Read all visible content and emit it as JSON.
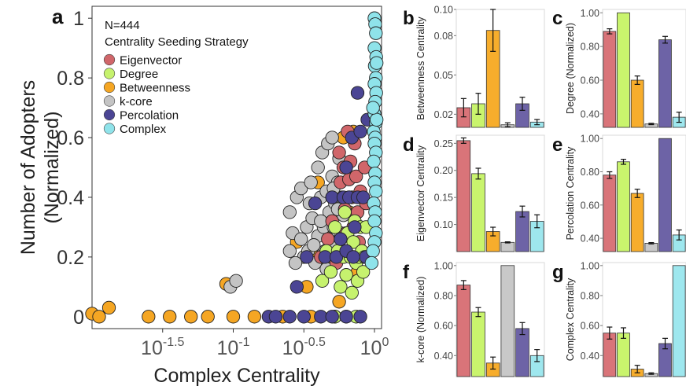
{
  "colors": {
    "Eigenvector": "#d0666a",
    "Degree": "#c6f26e",
    "Betweenness": "#f5a623",
    "k-core": "#c4c4c4",
    "Percolation": "#4b4594",
    "Complex": "#8fe3ea",
    "bar_Eigenvector": "#d97479",
    "bar_Degree": "#c9f46d",
    "bar_Betweenness": "#f7ad2c",
    "bar_k-core": "#c8c8c8",
    "bar_Percolation": "#6d63a6",
    "bar_Complex": "#9ee7ee"
  },
  "chart_data": [
    {
      "panel": "a",
      "type": "scatter",
      "xlabel": "Complex Centrality",
      "ylabel_lines": [
        "Number of Adopters",
        "(Normalized)"
      ],
      "x_scale": "log10",
      "xlim": [
        -2.0,
        0.05
      ],
      "ylim": [
        -0.04,
        1.04
      ],
      "x_ticks": [
        {
          "value": -1.5,
          "base": "10",
          "exp": "-1.5"
        },
        {
          "value": -1.0,
          "base": "10",
          "exp": "-1"
        },
        {
          "value": -0.5,
          "base": "10",
          "exp": "-0.5"
        },
        {
          "value": 0.0,
          "base": "10",
          "exp": "0"
        }
      ],
      "y_ticks": [
        {
          "value": 0,
          "label": "0"
        },
        {
          "value": 0.2,
          "label": "0.2"
        },
        {
          "value": 0.4,
          "label": "0.4"
        },
        {
          "value": 0.6,
          "label": "0.6"
        },
        {
          "value": 0.8,
          "label": "0.8"
        },
        {
          "value": 1,
          "label": "1"
        }
      ],
      "legend_header": "N=444",
      "legend_title": "Centrality Seeding Strategy",
      "legend_position": "top-left",
      "legend": [
        "Eigenvector",
        "Degree",
        "Betweenness",
        "k-core",
        "Percolation",
        "Complex"
      ],
      "series": [
        {
          "name": "Betweenness",
          "points": [
            [
              -2.0,
              0.01
            ],
            [
              -1.95,
              0.0
            ],
            [
              -1.88,
              0.03
            ],
            [
              -1.6,
              0.0
            ],
            [
              -1.45,
              0.0
            ],
            [
              -1.3,
              0.0
            ],
            [
              -1.18,
              0.0
            ],
            [
              -1.0,
              0.0
            ],
            [
              -0.85,
              0.0
            ],
            [
              -0.65,
              0.0
            ],
            [
              -0.45,
              0.0
            ],
            [
              -0.28,
              0.0
            ],
            [
              -1.05,
              0.11
            ],
            [
              -0.55,
              0.25
            ],
            [
              -0.48,
              0.1
            ],
            [
              -0.42,
              0.2
            ],
            [
              -0.35,
              0.3
            ],
            [
              -0.3,
              0.25
            ],
            [
              -0.22,
              0.6
            ],
            [
              -0.18,
              0.35
            ],
            [
              -0.12,
              0.15
            ],
            [
              -0.4,
              0.45
            ],
            [
              -0.33,
              0.18
            ],
            [
              -0.25,
              0.05
            ],
            [
              -0.15,
              0.62
            ]
          ]
        },
        {
          "name": "k-core",
          "points": [
            [
              -1.02,
              0.1
            ],
            [
              -0.98,
              0.12
            ],
            [
              -0.6,
              0.35
            ],
            [
              -0.58,
              0.28
            ],
            [
              -0.55,
              0.4
            ],
            [
              -0.52,
              0.43
            ],
            [
              -0.5,
              0.2
            ],
            [
              -0.48,
              0.3
            ],
            [
              -0.47,
              0.22
            ],
            [
              -0.45,
              0.45
            ],
            [
              -0.44,
              0.33
            ],
            [
              -0.42,
              0.18
            ],
            [
              -0.4,
              0.5
            ],
            [
              -0.4,
              0.27
            ],
            [
              -0.38,
              0.4
            ],
            [
              -0.37,
              0.55
            ],
            [
              -0.36,
              0.3
            ],
            [
              -0.35,
              0.22
            ],
            [
              -0.34,
              0.42
            ],
            [
              -0.33,
              0.58
            ],
            [
              -0.32,
              0.35
            ],
            [
              -0.31,
              0.25
            ],
            [
              -0.3,
              0.47
            ],
            [
              -0.3,
              0.6
            ],
            [
              -0.29,
              0.3
            ],
            [
              -0.28,
              0.38
            ],
            [
              -0.27,
              0.2
            ],
            [
              -0.26,
              0.45
            ],
            [
              -0.25,
              0.53
            ],
            [
              -0.24,
              0.28
            ],
            [
              -0.23,
              0.4
            ],
            [
              -0.22,
              0.34
            ],
            [
              -0.6,
              0.22
            ],
            [
              -0.56,
              0.18
            ],
            [
              -0.52,
              0.26
            ],
            [
              -0.46,
              0.38
            ],
            [
              -0.43,
              0.24
            ],
            [
              -0.38,
              0.32
            ],
            [
              -0.34,
              0.16
            ],
            [
              -0.29,
              0.43
            ],
            [
              -0.26,
              0.36
            ],
            [
              -0.22,
              0.2
            ]
          ]
        },
        {
          "name": "Eigenvector",
          "points": [
            [
              -0.38,
              0.2
            ],
            [
              -0.33,
              0.26
            ],
            [
              -0.3,
              0.32
            ],
            [
              -0.27,
              0.18
            ],
            [
              -0.25,
              0.55
            ],
            [
              -0.24,
              0.45
            ],
            [
              -0.22,
              0.5
            ],
            [
              -0.21,
              0.36
            ],
            [
              -0.2,
              0.28
            ],
            [
              -0.19,
              0.62
            ],
            [
              -0.18,
              0.46
            ],
            [
              -0.17,
              0.52
            ],
            [
              -0.16,
              0.4
            ],
            [
              -0.15,
              0.3
            ],
            [
              -0.14,
              0.58
            ],
            [
              -0.13,
              0.47
            ],
            [
              -0.12,
              0.35
            ],
            [
              -0.11,
              0.25
            ],
            [
              -0.1,
              0.42
            ],
            [
              -0.08,
              0.2
            ],
            [
              -0.07,
              0.5
            ],
            [
              -0.06,
              0.38
            ]
          ]
        },
        {
          "name": "Degree",
          "points": [
            [
              -0.37,
              0.12
            ],
            [
              -0.34,
              0.22
            ],
            [
              -0.31,
              0.15
            ],
            [
              -0.3,
              0.4
            ],
            [
              -0.28,
              0.3
            ],
            [
              -0.26,
              0.22
            ],
            [
              -0.24,
              0.1
            ],
            [
              -0.22,
              0.2
            ],
            [
              -0.21,
              0.35
            ],
            [
              -0.2,
              0.14
            ],
            [
              -0.19,
              0.28
            ],
            [
              -0.18,
              0.4
            ],
            [
              -0.17,
              0.2
            ],
            [
              -0.16,
              0.08
            ],
            [
              -0.15,
              0.25
            ],
            [
              -0.14,
              0.32
            ],
            [
              -0.13,
              0.18
            ],
            [
              -0.12,
              0.12
            ],
            [
              -0.11,
              0.2
            ],
            [
              -0.1,
              0.3
            ],
            [
              -0.09,
              0.22
            ],
            [
              -0.08,
              0.15
            ],
            [
              -0.07,
              0.2
            ],
            [
              -0.06,
              0.3
            ],
            [
              -0.28,
              0.0
            ],
            [
              -0.2,
              0.0
            ],
            [
              -0.13,
              0.0
            ]
          ]
        },
        {
          "name": "Percolation",
          "points": [
            [
              -0.75,
              0.0
            ],
            [
              -0.7,
              0.0
            ],
            [
              -0.6,
              0.0
            ],
            [
              -0.5,
              0.0
            ],
            [
              -0.38,
              0.0
            ],
            [
              -0.3,
              0.0
            ],
            [
              -0.2,
              0.0
            ],
            [
              -0.1,
              0.0
            ],
            [
              -0.55,
              0.1
            ],
            [
              -0.48,
              0.2
            ],
            [
              -0.42,
              0.38
            ],
            [
              -0.35,
              0.2
            ],
            [
              -0.3,
              0.4
            ],
            [
              -0.27,
              0.2
            ],
            [
              -0.24,
              0.26
            ],
            [
              -0.22,
              0.4
            ],
            [
              -0.2,
              0.5
            ],
            [
              -0.18,
              0.4
            ],
            [
              -0.16,
              0.6
            ],
            [
              -0.14,
              0.3
            ],
            [
              -0.12,
              0.4
            ],
            [
              -0.1,
              0.62
            ],
            [
              -0.08,
              0.4
            ],
            [
              -0.06,
              0.2
            ],
            [
              -0.12,
              0.75
            ],
            [
              -0.05,
              0.66
            ],
            [
              -0.2,
              0.22
            ],
            [
              -0.15,
              0.2
            ]
          ]
        },
        {
          "name": "Complex",
          "points": [
            [
              0.0,
              1.0
            ],
            [
              0.005,
              0.98
            ],
            [
              0.01,
              0.95
            ],
            [
              0.0,
              0.9
            ],
            [
              0.012,
              0.87
            ],
            [
              0.002,
              0.84
            ],
            [
              0.01,
              0.8
            ],
            [
              0.0,
              0.78
            ],
            [
              0.012,
              0.75
            ],
            [
              0.005,
              0.72
            ],
            [
              0.0,
              0.68
            ],
            [
              0.01,
              0.65
            ],
            [
              -0.005,
              0.62
            ],
            [
              0.005,
              0.6
            ],
            [
              0.0,
              0.58
            ],
            [
              0.01,
              0.55
            ],
            [
              -0.005,
              0.52
            ],
            [
              0.005,
              0.48
            ],
            [
              0.0,
              0.45
            ],
            [
              0.01,
              0.42
            ],
            [
              -0.005,
              0.38
            ],
            [
              0.005,
              0.35
            ],
            [
              0.0,
              0.32
            ],
            [
              0.01,
              0.28
            ],
            [
              0.0,
              0.25
            ],
            [
              -0.01,
              0.22
            ],
            [
              -0.02,
              0.18
            ],
            [
              0.015,
              0.85
            ],
            [
              0.015,
              0.66
            ],
            [
              -0.01,
              0.7
            ]
          ]
        }
      ]
    },
    {
      "panel": "b",
      "type": "bar",
      "ylabel": "Betweenness Centrality",
      "ylim": [
        0.01,
        0.1
      ],
      "y_ticks": [
        {
          "value": 0.02,
          "label": "0.02"
        },
        {
          "value": 0.05,
          "label": "0.05"
        },
        {
          "value": 0.08,
          "label": "0.08"
        },
        {
          "value": 0.1,
          "label": "0.10"
        }
      ],
      "categories": [
        "Eigenvector",
        "Degree",
        "Betweenness",
        "k-core",
        "Percolation",
        "Complex"
      ],
      "values": [
        0.025,
        0.028,
        0.084,
        0.012,
        0.028,
        0.014
      ],
      "errors": [
        0.007,
        0.008,
        0.016,
        0.0015,
        0.005,
        0.002
      ]
    },
    {
      "panel": "c",
      "type": "bar",
      "ylabel": "Degree (Normalized)",
      "ylim": [
        0.32,
        1.02
      ],
      "y_ticks": [
        {
          "value": 0.4,
          "label": "0.40"
        },
        {
          "value": 0.6,
          "label": "0.60"
        },
        {
          "value": 0.8,
          "label": "0.80"
        },
        {
          "value": 1.0,
          "label": "1.00"
        }
      ],
      "categories": [
        "Eigenvector",
        "Degree",
        "Betweenness",
        "k-core",
        "Percolation",
        "Complex"
      ],
      "values": [
        0.89,
        1.0,
        0.6,
        0.34,
        0.84,
        0.38
      ],
      "errors": [
        0.015,
        0.0,
        0.025,
        0.004,
        0.02,
        0.03
      ]
    },
    {
      "panel": "d",
      "type": "bar",
      "ylabel": "Eigenvector Centrality",
      "ylim": [
        0.05,
        0.265
      ],
      "y_ticks": [
        {
          "value": 0.1,
          "label": "0.10"
        },
        {
          "value": 0.15,
          "label": "0.15"
        },
        {
          "value": 0.2,
          "label": "0.20"
        },
        {
          "value": 0.25,
          "label": "0.25"
        }
      ],
      "categories": [
        "Eigenvector",
        "Degree",
        "Betweenness",
        "k-core",
        "Percolation",
        "Complex"
      ],
      "values": [
        0.255,
        0.194,
        0.087,
        0.067,
        0.124,
        0.106
      ],
      "errors": [
        0.005,
        0.01,
        0.008,
        0.001,
        0.01,
        0.012
      ]
    },
    {
      "panel": "e",
      "type": "bar",
      "ylabel": "Percolation Centrality",
      "ylim": [
        0.32,
        1.02
      ],
      "y_ticks": [
        {
          "value": 0.4,
          "label": "0.40"
        },
        {
          "value": 0.6,
          "label": "0.60"
        },
        {
          "value": 0.8,
          "label": "0.80"
        },
        {
          "value": 1.0,
          "label": "1.00"
        }
      ],
      "categories": [
        "Eigenvector",
        "Degree",
        "Betweenness",
        "k-core",
        "Percolation",
        "Complex"
      ],
      "values": [
        0.78,
        0.86,
        0.67,
        0.37,
        1.0,
        0.42
      ],
      "errors": [
        0.02,
        0.015,
        0.025,
        0.004,
        0.0,
        0.03
      ]
    },
    {
      "panel": "f",
      "type": "bar",
      "ylabel": "k-core (Normalized)",
      "ylim": [
        0.26,
        1.02
      ],
      "y_ticks": [
        {
          "value": 0.4,
          "label": "0.40"
        },
        {
          "value": 0.6,
          "label": "0.60"
        },
        {
          "value": 0.8,
          "label": "0.80"
        },
        {
          "value": 1.0,
          "label": "1.00"
        }
      ],
      "categories": [
        "Eigenvector",
        "Degree",
        "Betweenness",
        "k-core",
        "Percolation",
        "Complex"
      ],
      "values": [
        0.87,
        0.69,
        0.35,
        1.0,
        0.58,
        0.4
      ],
      "errors": [
        0.03,
        0.03,
        0.04,
        0.0,
        0.04,
        0.04
      ]
    },
    {
      "panel": "g",
      "type": "bar",
      "ylabel": "Complex Centrality",
      "ylim": [
        0.26,
        1.02
      ],
      "y_ticks": [
        {
          "value": 0.4,
          "label": "0.40"
        },
        {
          "value": 0.6,
          "label": "0.60"
        },
        {
          "value": 0.8,
          "label": "0.80"
        },
        {
          "value": 1.0,
          "label": "1.00"
        }
      ],
      "categories": [
        "Eigenvector",
        "Degree",
        "Betweenness",
        "k-core",
        "Percolation",
        "Complex"
      ],
      "values": [
        0.55,
        0.55,
        0.31,
        0.28,
        0.48,
        1.0
      ],
      "errors": [
        0.04,
        0.035,
        0.025,
        0.005,
        0.035,
        0.0
      ]
    }
  ]
}
